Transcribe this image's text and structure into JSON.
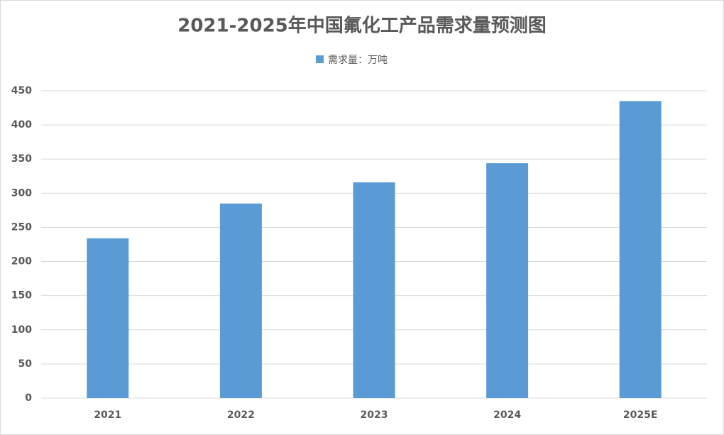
{
  "chart_data": {
    "type": "bar",
    "title": "2021-2025年中国氟化工产品需求量预测图",
    "categories": [
      "2021",
      "2022",
      "2023",
      "2024",
      "2025E"
    ],
    "series": [
      {
        "name": "需求量：万吨",
        "color": "#5b9bd5",
        "values": [
          234,
          285,
          316,
          344,
          435
        ]
      }
    ],
    "ylim": [
      0,
      450
    ],
    "yticks": [
      0,
      50,
      100,
      150,
      200,
      250,
      300,
      350,
      400,
      450
    ],
    "grid": true,
    "legend": "top"
  }
}
